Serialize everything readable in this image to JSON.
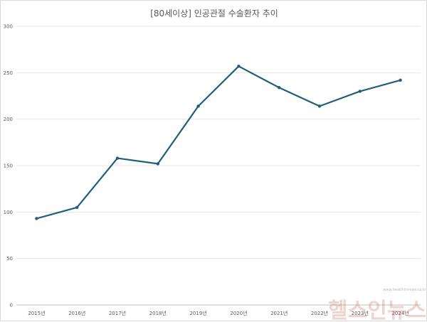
{
  "chart_data": {
    "type": "line",
    "title": "[80세이상] 인공관절 수술환자 추이",
    "categories": [
      "2015년",
      "2016년",
      "2017년",
      "2018년",
      "2019년",
      "2020년",
      "2021년",
      "2022년",
      "2023년",
      "2024년"
    ],
    "series": [
      {
        "values": [
          93,
          105,
          158,
          152,
          214,
          257,
          234,
          214,
          230,
          242
        ]
      }
    ],
    "ylim": [
      0,
      300
    ],
    "yticks": [
      0,
      50,
      100,
      150,
      200,
      250,
      300
    ],
    "grid": true,
    "legend": "none"
  },
  "colors": {
    "line": "#1f5f7a",
    "grid": "#e6e6e6",
    "axis": "#bfbfbf",
    "text": "#595959"
  },
  "watermark": {
    "brand": "헬스인뉴스",
    "url": "www.healthinnews.co.kr"
  }
}
